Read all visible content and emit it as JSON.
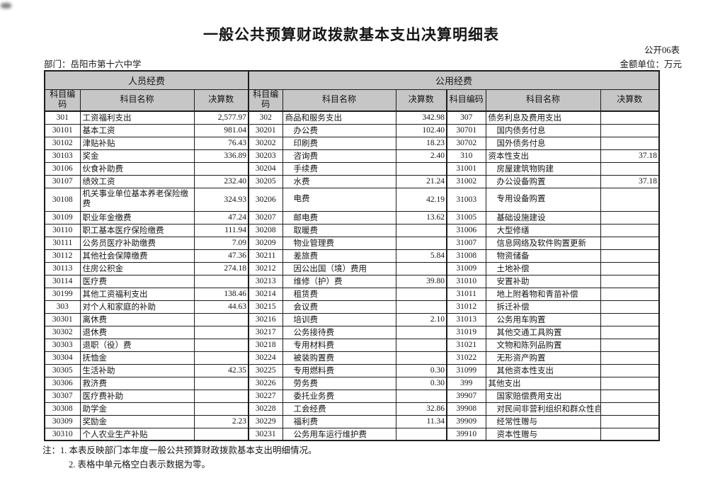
{
  "title": "一般公共预算财政拨款基本支出决算明细表",
  "form_no": "公开06表",
  "department_label": "部门：岳阳市第十六中学",
  "unit_label": "金额单位：万元",
  "table": {
    "group_headers": [
      "人员经费",
      "公用经费"
    ],
    "col_headers": {
      "code": "科目编码",
      "name": "科目名称",
      "value": "决算数"
    },
    "tall_row_index": 6,
    "sections": [
      {
        "name": "personnel",
        "rows": [
          [
            "301",
            "工资福利支出",
            "2,577.97"
          ],
          [
            "30101",
            "基本工资",
            "981.04"
          ],
          [
            "30102",
            "津贴补贴",
            "76.43"
          ],
          [
            "30103",
            "奖金",
            "336.89"
          ],
          [
            "30106",
            "伙食补助费",
            ""
          ],
          [
            "30107",
            "绩效工资",
            "232.40"
          ],
          [
            "30108",
            "机关事业单位基本养老保险缴费",
            "324.93"
          ],
          [
            "30109",
            "职业年金缴费",
            "47.24"
          ],
          [
            "30110",
            "职工基本医疗保险缴费",
            "111.94"
          ],
          [
            "30111",
            "公务员医疗补助缴费",
            "7.09"
          ],
          [
            "30112",
            "其他社会保障缴费",
            "47.36"
          ],
          [
            "30113",
            "住房公积金",
            "274.18"
          ],
          [
            "30114",
            "医疗费",
            ""
          ],
          [
            "30199",
            "其他工资福利支出",
            "138.46"
          ],
          [
            "303",
            "对个人和家庭的补助",
            "44.63"
          ],
          [
            "30301",
            "离休费",
            ""
          ],
          [
            "30302",
            "退休费",
            ""
          ],
          [
            "30303",
            "退职（役）费",
            ""
          ],
          [
            "30304",
            "抚恤金",
            ""
          ],
          [
            "30305",
            "生活补助",
            "42.35"
          ],
          [
            "30306",
            "救济费",
            ""
          ],
          [
            "30307",
            "医疗费补助",
            ""
          ],
          [
            "30308",
            "助学金",
            ""
          ],
          [
            "30309",
            "奖励金",
            "2.23"
          ],
          [
            "30310",
            "个人农业生产补贴",
            ""
          ]
        ]
      },
      {
        "name": "public-a",
        "rows": [
          [
            "302",
            "商品和服务支出",
            "342.98"
          ],
          [
            "30201",
            "办公费",
            "102.40"
          ],
          [
            "30202",
            "印刷费",
            "18.23"
          ],
          [
            "30203",
            "咨询费",
            "2.40"
          ],
          [
            "30204",
            "手续费",
            ""
          ],
          [
            "30205",
            "水费",
            "21.24"
          ],
          [
            "30206",
            "电费",
            "42.19"
          ],
          [
            "30207",
            "邮电费",
            "13.62"
          ],
          [
            "30208",
            "取暖费",
            ""
          ],
          [
            "30209",
            "物业管理费",
            ""
          ],
          [
            "30211",
            "差旅费",
            "5.84"
          ],
          [
            "30212",
            "因公出国（境）费用",
            ""
          ],
          [
            "30213",
            "维修（护）费",
            "39.80"
          ],
          [
            "30214",
            "租赁费",
            ""
          ],
          [
            "30215",
            "会议费",
            ""
          ],
          [
            "30216",
            "培训费",
            "2.10"
          ],
          [
            "30217",
            "公务接待费",
            ""
          ],
          [
            "30218",
            "专用材料费",
            ""
          ],
          [
            "30224",
            "被装购置费",
            ""
          ],
          [
            "30225",
            "专用燃料费",
            "0.30"
          ],
          [
            "30226",
            "劳务费",
            "0.30"
          ],
          [
            "30227",
            "委托业务费",
            ""
          ],
          [
            "30228",
            "工会经费",
            "32.86"
          ],
          [
            "30229",
            "福利费",
            "11.34"
          ],
          [
            "30231",
            "公务用车运行维护费",
            ""
          ]
        ]
      },
      {
        "name": "public-b",
        "rows": [
          [
            "307",
            "债务利息及费用支出",
            ""
          ],
          [
            "30701",
            "国内债务付息",
            ""
          ],
          [
            "30702",
            "国外债务付息",
            ""
          ],
          [
            "310",
            "资本性支出",
            "37.18"
          ],
          [
            "31001",
            "房屋建筑物购建",
            ""
          ],
          [
            "31002",
            "办公设备购置",
            "37.18"
          ],
          [
            "31003",
            "专用设备购置",
            ""
          ],
          [
            "31005",
            "基础设施建设",
            ""
          ],
          [
            "31006",
            "大型修缮",
            ""
          ],
          [
            "31007",
            "信息网络及软件购置更新",
            ""
          ],
          [
            "31008",
            "物资储备",
            ""
          ],
          [
            "31009",
            "土地补偿",
            ""
          ],
          [
            "31010",
            "安置补助",
            ""
          ],
          [
            "31011",
            "地上附着物和青苗补偿",
            ""
          ],
          [
            "31012",
            "拆迁补偿",
            ""
          ],
          [
            "31013",
            "公务用车购置",
            ""
          ],
          [
            "31019",
            "其他交通工具购置",
            ""
          ],
          [
            "31021",
            "文物和陈列品购置",
            ""
          ],
          [
            "31022",
            "无形资产购置",
            ""
          ],
          [
            "31099",
            "其他资本性支出",
            ""
          ],
          [
            "399",
            "其他支出",
            ""
          ],
          [
            "39907",
            "国家赔偿费用支出",
            ""
          ],
          [
            "39908",
            "对民间非营利组织和群众性自",
            ""
          ],
          [
            "39909",
            "经常性赠与",
            ""
          ],
          [
            "39910",
            "资本性赠与",
            ""
          ]
        ]
      }
    ]
  },
  "notes": [
    "注：1. 本表反映部门本年度一般公共预算财政拨款基本支出明细情况。",
    "2. 表格中单元格空白表示数据为零。"
  ]
}
